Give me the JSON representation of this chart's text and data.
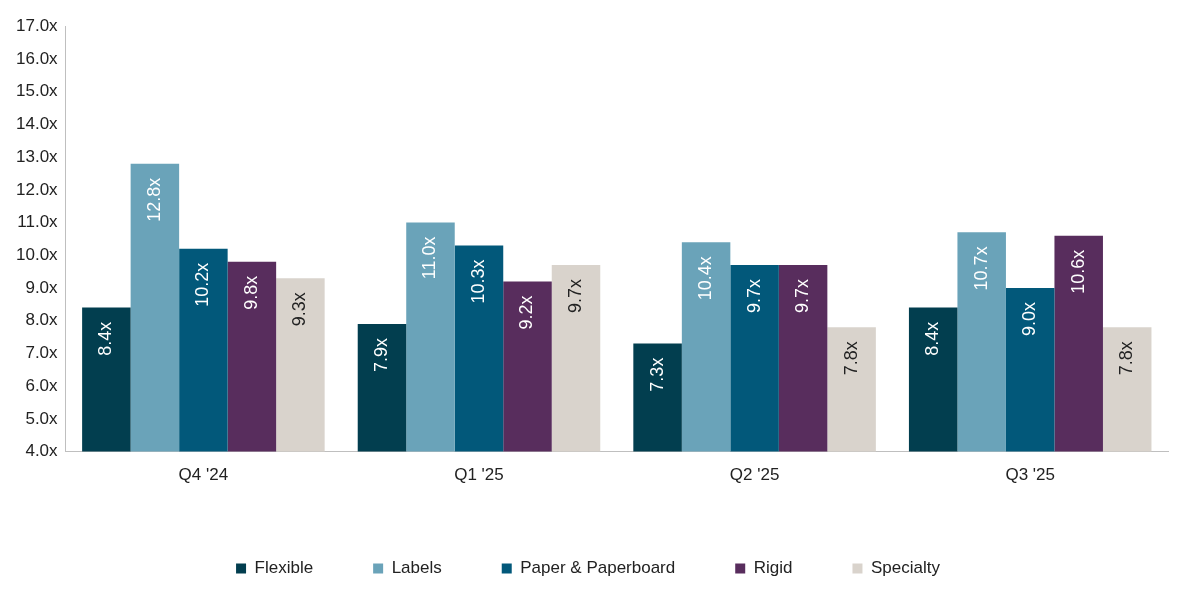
{
  "chart_data": {
    "type": "bar",
    "categories": [
      "Q4 '24",
      "Q1 '25",
      "Q2 '25",
      "Q3 '25"
    ],
    "series": [
      {
        "name": "Flexible",
        "color": "#023e4f",
        "values": [
          8.4,
          7.9,
          7.3,
          8.4
        ],
        "value_labels": [
          "8.4x",
          "7.9x",
          "7.3x",
          "8.4x"
        ]
      },
      {
        "name": "Labels",
        "color": "#6aa3b9",
        "values": [
          12.8,
          11.0,
          10.4,
          10.7
        ],
        "value_labels": [
          "12.8x",
          "11.0x",
          "10.4x",
          "10.7x"
        ]
      },
      {
        "name": "Paper & Paperboard",
        "color": "#02587a",
        "values": [
          10.2,
          10.3,
          9.7,
          9.0
        ],
        "value_labels": [
          "10.2x",
          "10.3x",
          "9.7x",
          "9.0x"
        ]
      },
      {
        "name": "Rigid",
        "color": "#582d5d",
        "values": [
          9.8,
          9.2,
          9.7,
          10.6
        ],
        "value_labels": [
          "9.8x",
          "9.2x",
          "9.7x",
          "10.6x"
        ]
      },
      {
        "name": "Specialty",
        "color": "#d9d3cc",
        "values": [
          9.3,
          9.7,
          7.8,
          7.8
        ],
        "value_labels": [
          "9.3x",
          "9.7x",
          "7.8x",
          "7.8x"
        ]
      }
    ],
    "ylim": [
      4,
      17
    ],
    "yticks": [
      {
        "value": 4,
        "label": "4.0x"
      },
      {
        "value": 5,
        "label": "5.0x"
      },
      {
        "value": 6,
        "label": "6.0x"
      },
      {
        "value": 7,
        "label": "7.0x"
      },
      {
        "value": 8,
        "label": "8.0x"
      },
      {
        "value": 9,
        "label": "9.0x"
      },
      {
        "value": 10,
        "label": "10.0x"
      },
      {
        "value": 11,
        "label": "11.0x"
      },
      {
        "value": 12,
        "label": "12.0x"
      },
      {
        "value": 13,
        "label": "13.0x"
      },
      {
        "value": 14,
        "label": "14.0x"
      },
      {
        "value": 15,
        "label": "15.0x"
      },
      {
        "value": 16,
        "label": "16.0x"
      },
      {
        "value": 17,
        "label": "17.0x"
      }
    ],
    "grid": false,
    "legend": "bottom"
  }
}
